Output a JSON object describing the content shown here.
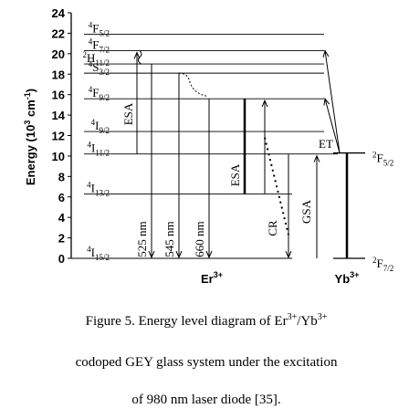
{
  "figure": {
    "ylabel": [
      "Energy (10",
      "3",
      " cm",
      "-1",
      ")"
    ],
    "ylim": [
      0,
      24
    ],
    "yticks": [
      0,
      2,
      4,
      6,
      8,
      10,
      12,
      14,
      16,
      18,
      20,
      22,
      24
    ],
    "er_levels": [
      {
        "sup": "4",
        "main": "I",
        "sub": "15/2",
        "value": 0
      },
      {
        "sup": "4",
        "main": "I",
        "sub": "13/2",
        "value": 6.3
      },
      {
        "sup": "4",
        "main": "I",
        "sub": "11/2",
        "value": 10.2
      },
      {
        "sup": "4",
        "main": "I",
        "sub": "9/2",
        "value": 12.4
      },
      {
        "sup": "4",
        "main": "F",
        "sub": "9/2",
        "value": 15.6
      },
      {
        "sup": "4",
        "main": "S",
        "sub": "3/2",
        "value": 18.1
      },
      {
        "sup": "2",
        "main": "H",
        "sub": "11/2",
        "value": 19.0
      },
      {
        "sup": "4",
        "main": "F",
        "sub": "7/2",
        "value": 20.3
      },
      {
        "sup": "4",
        "main": "F",
        "sub": "5/2",
        "value": 21.9
      }
    ],
    "yb_levels": [
      {
        "sup": "2",
        "main": "F",
        "sub": "7/2",
        "value": 0
      },
      {
        "sup": "2",
        "main": "F",
        "sub": "5/2",
        "value": 10.3
      }
    ],
    "er_ion": [
      "Er",
      "3+"
    ],
    "yb_ion": [
      "Yb",
      "3+"
    ],
    "labels": {
      "esa1": "ESA",
      "nm525": "525 nm",
      "nm545": "545 nm",
      "nm660": "660 nm",
      "esa2": "ESA",
      "cr": "CR",
      "gsa": "GSA",
      "et": "ET"
    }
  },
  "caption": {
    "lines": [
      [
        "Figure 5. Energy level diagram  of Er",
        "3+",
        "/Yb",
        "3+"
      ],
      [
        "codoped GEY glass system under the excitation"
      ],
      [
        "of 980 nm laser diode [35]."
      ]
    ]
  }
}
